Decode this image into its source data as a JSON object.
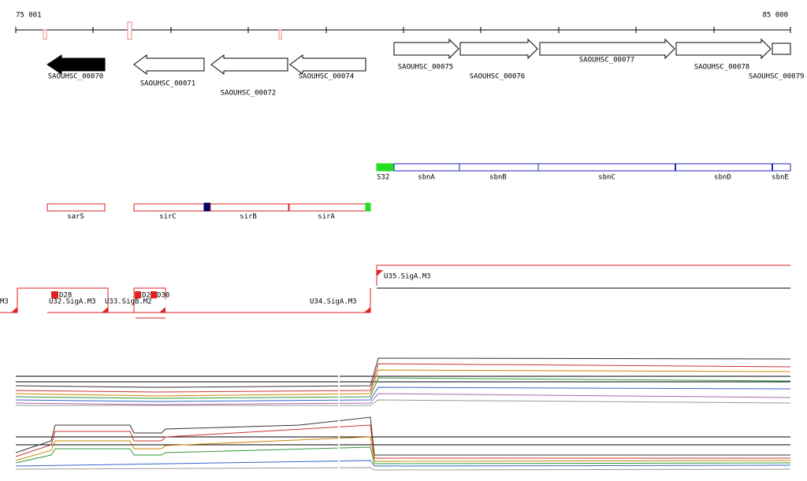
{
  "ruler": {
    "start": "75 001",
    "end": "85 000"
  },
  "genes": [
    "SAOUHSC_00070",
    "SAOUHSC_00071",
    "SAOUHSC_00072",
    "SAOUHSC_00074",
    "SAOUHSC_00075",
    "SAOUHSC_00076",
    "SAOUHSC_00077",
    "SAOUHSC_00078",
    "SAOUHSC_00079"
  ],
  "segments": [
    "S32",
    "sbnA",
    "sbnB",
    "sbnC",
    "sbnD",
    "sbnE",
    "sarS",
    "sirC",
    "sirB",
    "sirA"
  ],
  "promoters": [
    "U35.SigA.M3",
    "M3",
    "U32.SigA.M3",
    "U33.SigB.M2",
    "U34.SigA.M3",
    "D28",
    "D2",
    "D30"
  ]
}
